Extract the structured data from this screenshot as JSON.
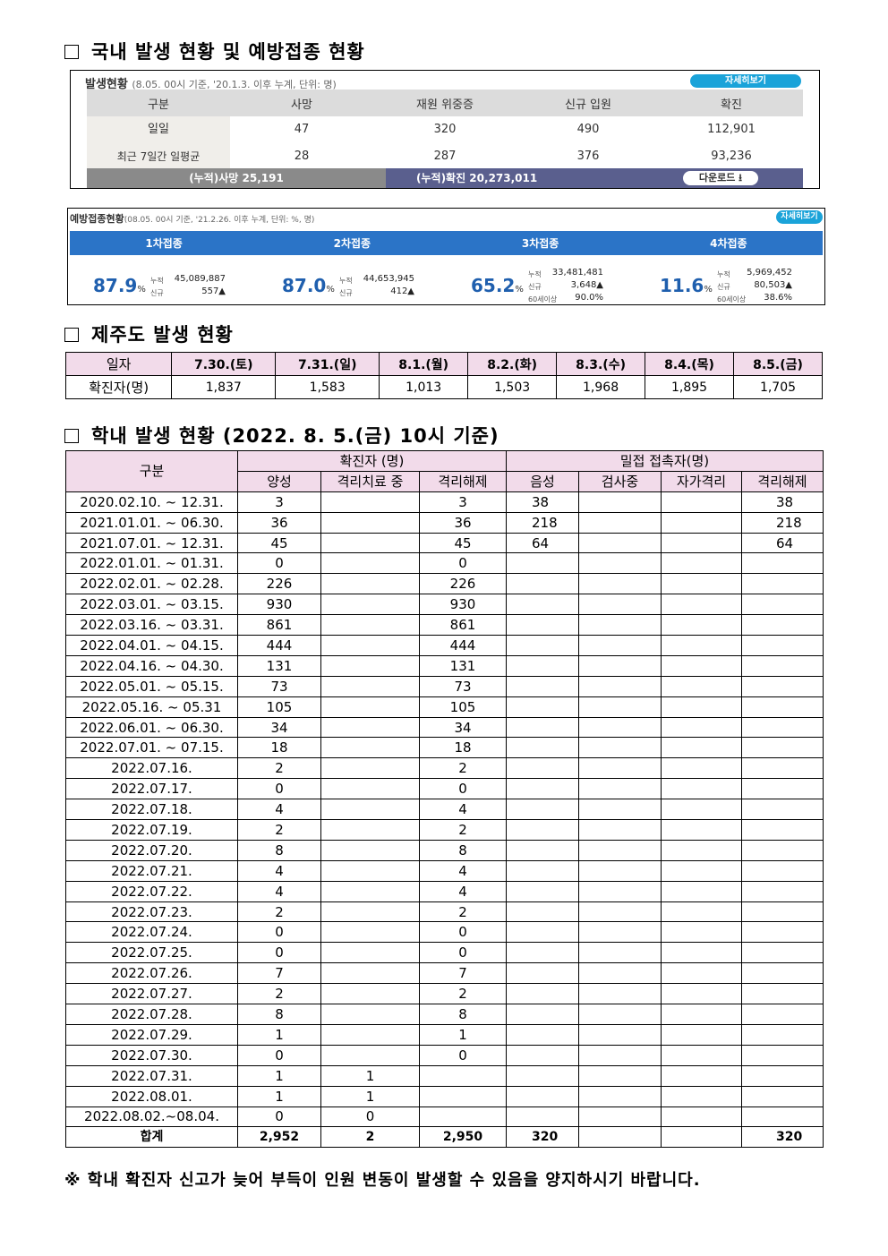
{
  "section1": {
    "title": "국내 발생 현황 및 예방접종 현황"
  },
  "occurrence": {
    "title": "발생현황",
    "subtitle": "(8.05. 00시 기준, '20.1.3. 이후 누계, 단위: 명)",
    "detail_button": "자세히보기",
    "headers": [
      "구분",
      "사망",
      "재원 위중증",
      "신규 입원",
      "확진"
    ],
    "rows": [
      [
        "일일",
        "47",
        "320",
        "490",
        "112,901"
      ],
      [
        "최근 7일간 일평균",
        "28",
        "287",
        "376",
        "93,236"
      ]
    ],
    "cum_death": "(누적)사망  25,191",
    "cum_confirmed": "(누적)확진  20,273,011",
    "download_button": "다운로드 ⭳"
  },
  "vaccination": {
    "title": "예방접종현황",
    "subtitle": "(08.05. 00시 기준, '21.2.26. 이후 누계, 단위: %, 명)",
    "detail_button": "자세히보기",
    "doses": [
      {
        "label": "1차접종",
        "pct": "87.9",
        "cum": "45,089,887",
        "new": "557▲"
      },
      {
        "label": "2차접종",
        "pct": "87.0",
        "cum": "44,653,945",
        "new": "412▲"
      },
      {
        "label": "3차접종",
        "pct": "65.2",
        "cum": "33,481,481",
        "new": "3,648▲",
        "over60": "90.0%"
      },
      {
        "label": "4차접종",
        "pct": "11.6",
        "cum": "5,969,452",
        "new": "80,503▲",
        "over60": "38.6%"
      }
    ],
    "labels": {
      "cum": "누적",
      "new": "신규",
      "over60": "60세이상",
      "pct": "%"
    }
  },
  "section2": {
    "title": "제주도 발생 현황"
  },
  "jeju": {
    "headers": [
      "일자",
      "7.30.(토)",
      "7.31.(일)",
      "8.1.(월)",
      "8.2.(화)",
      "8.3.(수)",
      "8.4.(목)",
      "8.5.(금)"
    ],
    "row": [
      "확진자(명)",
      "1,837",
      "1,583",
      "1,013",
      "1,503",
      "1,968",
      "1,895",
      "1,705"
    ]
  },
  "section3": {
    "title": "학내 발생 현황 (2022. 8. 5.(금) 10시 기준)"
  },
  "school": {
    "group_header": "구분",
    "confirmed_header": "확진자 (명)",
    "contact_header": "밀접 접촉자(명)",
    "sub_headers": [
      "양성",
      "격리치료 중",
      "격리해제",
      "음성",
      "검사중",
      "자가격리",
      "격리해제"
    ],
    "rows": [
      [
        "2020.02.10. ~ 12.31.",
        "3",
        "",
        "3",
        "38",
        "",
        "",
        "38"
      ],
      [
        "2021.01.01. ~ 06.30.",
        "36",
        "",
        "36",
        "218",
        "",
        "",
        "218"
      ],
      [
        "2021.07.01. ~ 12.31.",
        "45",
        "",
        "45",
        "64",
        "",
        "",
        "64"
      ],
      [
        "2022.01.01. ~ 01.31.",
        "0",
        "",
        "0",
        "",
        "",
        "",
        ""
      ],
      [
        "2022.02.01. ~ 02.28.",
        "226",
        "",
        "226",
        "",
        "",
        "",
        ""
      ],
      [
        "2022.03.01. ~ 03.15.",
        "930",
        "",
        "930",
        "",
        "",
        "",
        ""
      ],
      [
        "2022.03.16. ~ 03.31.",
        "861",
        "",
        "861",
        "",
        "",
        "",
        ""
      ],
      [
        "2022.04.01. ~ 04.15.",
        "444",
        "",
        "444",
        "",
        "",
        "",
        ""
      ],
      [
        "2022.04.16. ~ 04.30.",
        "131",
        "",
        "131",
        "",
        "",
        "",
        ""
      ],
      [
        "2022.05.01. ~ 05.15.",
        "73",
        "",
        "73",
        "",
        "",
        "",
        ""
      ],
      [
        "2022.05.16. ~ 05.31",
        "105",
        "",
        "105",
        "",
        "",
        "",
        ""
      ],
      [
        "2022.06.01. ~ 06.30.",
        "34",
        "",
        "34",
        "",
        "",
        "",
        ""
      ],
      [
        "2022.07.01. ~ 07.15.",
        "18",
        "",
        "18",
        "",
        "",
        "",
        ""
      ],
      [
        "2022.07.16.",
        "2",
        "",
        "2",
        "",
        "",
        "",
        ""
      ],
      [
        "2022.07.17.",
        "0",
        "",
        "0",
        "",
        "",
        "",
        ""
      ],
      [
        "2022.07.18.",
        "4",
        "",
        "4",
        "",
        "",
        "",
        ""
      ],
      [
        "2022.07.19.",
        "2",
        "",
        "2",
        "",
        "",
        "",
        ""
      ],
      [
        "2022.07.20.",
        "8",
        "",
        "8",
        "",
        "",
        "",
        ""
      ],
      [
        "2022.07.21.",
        "4",
        "",
        "4",
        "",
        "",
        "",
        ""
      ],
      [
        "2022.07.22.",
        "4",
        "",
        "4",
        "",
        "",
        "",
        ""
      ],
      [
        "2022.07.23.",
        "2",
        "",
        "2",
        "",
        "",
        "",
        ""
      ],
      [
        "2022.07.24.",
        "0",
        "",
        "0",
        "",
        "",
        "",
        ""
      ],
      [
        "2022.07.25.",
        "0",
        "",
        "0",
        "",
        "",
        "",
        ""
      ],
      [
        "2022.07.26.",
        "7",
        "",
        "7",
        "",
        "",
        "",
        ""
      ],
      [
        "2022.07.27.",
        "2",
        "",
        "2",
        "",
        "",
        "",
        ""
      ],
      [
        "2022.07.28.",
        "8",
        "",
        "8",
        "",
        "",
        "",
        ""
      ],
      [
        "2022.07.29.",
        "1",
        "",
        "1",
        "",
        "",
        "",
        ""
      ],
      [
        "2022.07.30.",
        "0",
        "",
        "0",
        "",
        "",
        "",
        ""
      ],
      [
        "2022.07.31.",
        "1",
        "1",
        "",
        "",
        "",
        "",
        ""
      ],
      [
        "2022.08.01.",
        "1",
        "1",
        "",
        "",
        "",
        "",
        ""
      ],
      [
        "2022.08.02.~08.04.",
        "0",
        "0",
        "",
        "",
        "",
        "",
        ""
      ]
    ],
    "total": [
      "합계",
      "2,952",
      "2",
      "2,950",
      "320",
      "",
      "",
      "320"
    ]
  },
  "note": "※ 학내 확진자 신고가 늦어 부득이 인원 변동이 발생할 수 있음을 양지하시기 바랍니다."
}
